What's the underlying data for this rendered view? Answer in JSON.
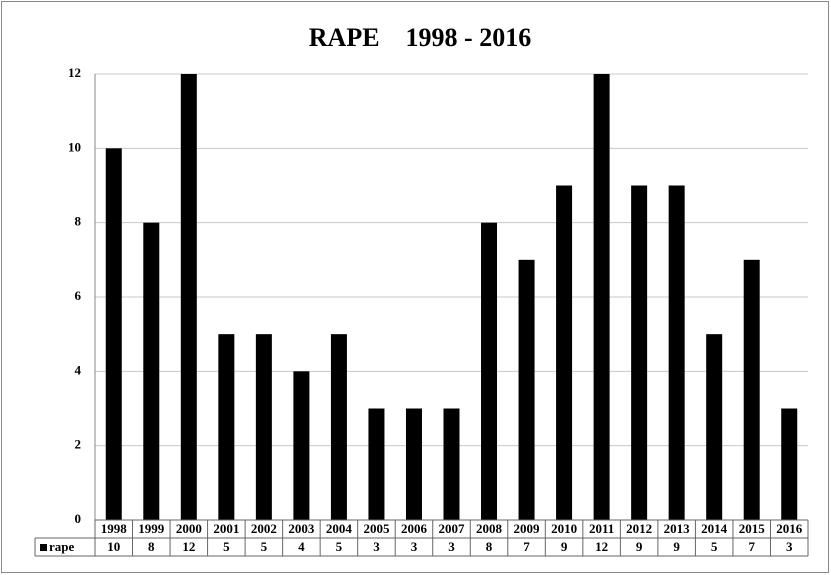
{
  "chart_data": {
    "type": "bar",
    "title": "RAPE    1998 - 2016",
    "categories": [
      "1998",
      "1999",
      "2000",
      "2001",
      "2002",
      "2003",
      "2004",
      "2005",
      "2006",
      "2007",
      "2008",
      "2009",
      "2010",
      "2011",
      "2012",
      "2013",
      "2014",
      "2015",
      "2016"
    ],
    "series": [
      {
        "name": "rape",
        "color": "#000000",
        "values": [
          10,
          8,
          12,
          5,
          5,
          4,
          5,
          3,
          3,
          3,
          8,
          7,
          9,
          12,
          9,
          9,
          5,
          7,
          3
        ]
      }
    ],
    "ylim": [
      0,
      12
    ],
    "yticks": [
      0,
      2,
      4,
      6,
      8,
      10,
      12
    ],
    "grid": true,
    "data_table": true
  }
}
